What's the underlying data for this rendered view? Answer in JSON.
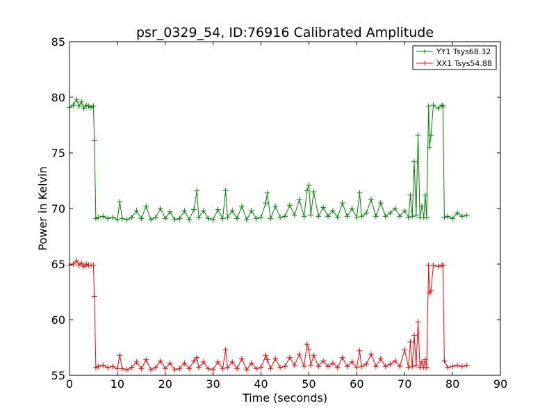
{
  "chart_data": {
    "type": "line",
    "title": "psr_0329_54, ID:76916 Calibrated Amplitude",
    "xlabel": "Time (seconds)",
    "ylabel": "Power in Kelvin",
    "xlim": [
      0,
      90
    ],
    "ylim": [
      55,
      85
    ],
    "xticks": [
      0,
      10,
      20,
      30,
      40,
      50,
      60,
      70,
      80,
      90
    ],
    "yticks": [
      55,
      60,
      65,
      70,
      75,
      80,
      85
    ],
    "grid": false,
    "legend_position": "top-right",
    "marker": "+",
    "series": [
      {
        "name": "YY1 Tsys68.32",
        "color": "#008000",
        "x": [
          0.0,
          0.8,
          1.5,
          2.0,
          2.5,
          3.0,
          3.5,
          4.0,
          4.5,
          5.0,
          5.2,
          5.5,
          6.0,
          7.0,
          8.0,
          9.0,
          10.0,
          10.5,
          11.0,
          12.0,
          13.0,
          14.0,
          15.0,
          16.0,
          17.0,
          18.0,
          19.0,
          20.0,
          21.0,
          22.0,
          23.0,
          24.0,
          25.0,
          26.0,
          26.6,
          27.0,
          28.0,
          29.0,
          30.0,
          31.0,
          32.0,
          32.6,
          33.0,
          34.0,
          35.0,
          36.0,
          37.0,
          38.0,
          39.0,
          40.0,
          41.0,
          41.3,
          42.0,
          43.0,
          44.0,
          45.0,
          46.0,
          47.0,
          48.0,
          49.0,
          49.6,
          50.0,
          50.4,
          51.0,
          52.0,
          53.0,
          54.0,
          55.0,
          56.0,
          57.0,
          58.0,
          59.0,
          60.0,
          60.6,
          61.0,
          62.0,
          63.0,
          64.0,
          65.0,
          66.0,
          67.0,
          68.0,
          69.0,
          70.0,
          70.8,
          71.2,
          71.6,
          72.0,
          72.4,
          72.8,
          73.2,
          73.6,
          74.0,
          74.3,
          74.6,
          75.0,
          75.2,
          75.5,
          76.0,
          77.0,
          77.8,
          78.0,
          78.3,
          79.0,
          80.0,
          81.0,
          82.0,
          83.0
        ],
        "values": [
          79.1,
          79.3,
          79.8,
          79.2,
          79.6,
          79.0,
          79.3,
          79.2,
          79.1,
          79.2,
          76.1,
          69.1,
          69.2,
          69.3,
          69.1,
          69.2,
          69.0,
          70.6,
          69.1,
          69.0,
          69.2,
          69.8,
          69.1,
          70.2,
          69.0,
          69.2,
          70.0,
          69.1,
          69.7,
          69.0,
          69.1,
          69.8,
          69.0,
          69.9,
          71.6,
          69.2,
          69.8,
          69.1,
          69.0,
          69.9,
          69.1,
          71.6,
          69.2,
          69.8,
          69.1,
          70.2,
          69.0,
          69.8,
          69.1,
          69.2,
          70.5,
          71.4,
          69.1,
          70.2,
          69.2,
          69.3,
          70.3,
          69.4,
          70.8,
          69.3,
          71.6,
          72.1,
          69.4,
          71.5,
          69.3,
          70.1,
          69.3,
          69.8,
          69.2,
          70.5,
          69.3,
          70.0,
          69.2,
          71.4,
          69.3,
          69.6,
          70.8,
          69.3,
          70.5,
          69.3,
          69.6,
          70.0,
          69.3,
          69.8,
          69.2,
          71.2,
          69.3,
          74.2,
          69.4,
          76.6,
          69.2,
          70.2,
          69.2,
          71.2,
          69.2,
          79.2,
          75.5,
          76.6,
          79.3,
          79.0,
          79.3,
          79.2,
          69.2,
          69.3,
          69.1,
          69.6,
          69.3,
          69.4
        ]
      },
      {
        "name": "XX1 Tsys54.88",
        "color": "#ff0000",
        "x": [
          0.0,
          0.8,
          1.5,
          2.0,
          2.5,
          3.0,
          3.5,
          4.0,
          4.5,
          5.0,
          5.2,
          5.5,
          6.0,
          7.0,
          8.0,
          9.0,
          10.0,
          10.5,
          11.0,
          12.0,
          13.0,
          14.0,
          15.0,
          16.0,
          17.0,
          18.0,
          19.0,
          20.0,
          21.0,
          22.0,
          23.0,
          24.0,
          25.0,
          26.0,
          26.6,
          27.0,
          28.0,
          29.0,
          30.0,
          31.0,
          32.0,
          32.6,
          33.0,
          34.0,
          35.0,
          36.0,
          37.0,
          38.0,
          39.0,
          40.0,
          41.0,
          41.3,
          42.0,
          43.0,
          44.0,
          45.0,
          46.0,
          47.0,
          48.0,
          49.0,
          49.6,
          50.0,
          50.4,
          51.0,
          52.0,
          53.0,
          54.0,
          55.0,
          56.0,
          57.0,
          58.0,
          59.0,
          60.0,
          60.6,
          61.0,
          62.0,
          63.0,
          64.0,
          65.0,
          66.0,
          67.0,
          68.0,
          69.0,
          70.0,
          70.8,
          71.2,
          71.6,
          72.0,
          72.4,
          72.8,
          73.2,
          73.6,
          74.0,
          74.3,
          74.6,
          75.0,
          75.2,
          75.5,
          76.0,
          77.0,
          77.8,
          78.0,
          78.3,
          79.0,
          80.0,
          81.0,
          82.0,
          83.0
        ],
        "values": [
          64.9,
          65.0,
          65.3,
          64.9,
          65.1,
          64.8,
          65.0,
          64.9,
          64.9,
          64.9,
          62.1,
          55.7,
          55.8,
          55.9,
          55.7,
          55.8,
          55.6,
          56.8,
          55.6,
          55.5,
          55.7,
          56.2,
          55.6,
          56.4,
          55.5,
          55.7,
          56.3,
          55.6,
          56.1,
          55.5,
          55.6,
          56.1,
          55.6,
          56.3,
          56.6,
          55.7,
          56.2,
          55.6,
          55.5,
          56.2,
          55.6,
          57.3,
          55.7,
          56.2,
          55.6,
          56.5,
          55.5,
          56.1,
          55.6,
          55.7,
          56.8,
          56.4,
          55.6,
          56.5,
          55.7,
          55.8,
          56.6,
          55.9,
          56.9,
          55.8,
          57.8,
          57.3,
          55.9,
          56.8,
          55.8,
          56.3,
          55.8,
          56.1,
          55.7,
          56.6,
          55.8,
          56.2,
          55.7,
          57.2,
          55.8,
          56.0,
          56.9,
          55.8,
          56.5,
          55.8,
          56.0,
          56.3,
          55.8,
          57.3,
          55.7,
          58.0,
          55.8,
          58.6,
          55.9,
          59.8,
          55.7,
          56.2,
          55.7,
          56.4,
          55.7,
          64.9,
          62.4,
          62.6,
          64.9,
          64.8,
          64.9,
          64.9,
          56.3,
          55.7,
          55.8,
          55.9,
          55.8,
          55.9
        ]
      }
    ]
  }
}
